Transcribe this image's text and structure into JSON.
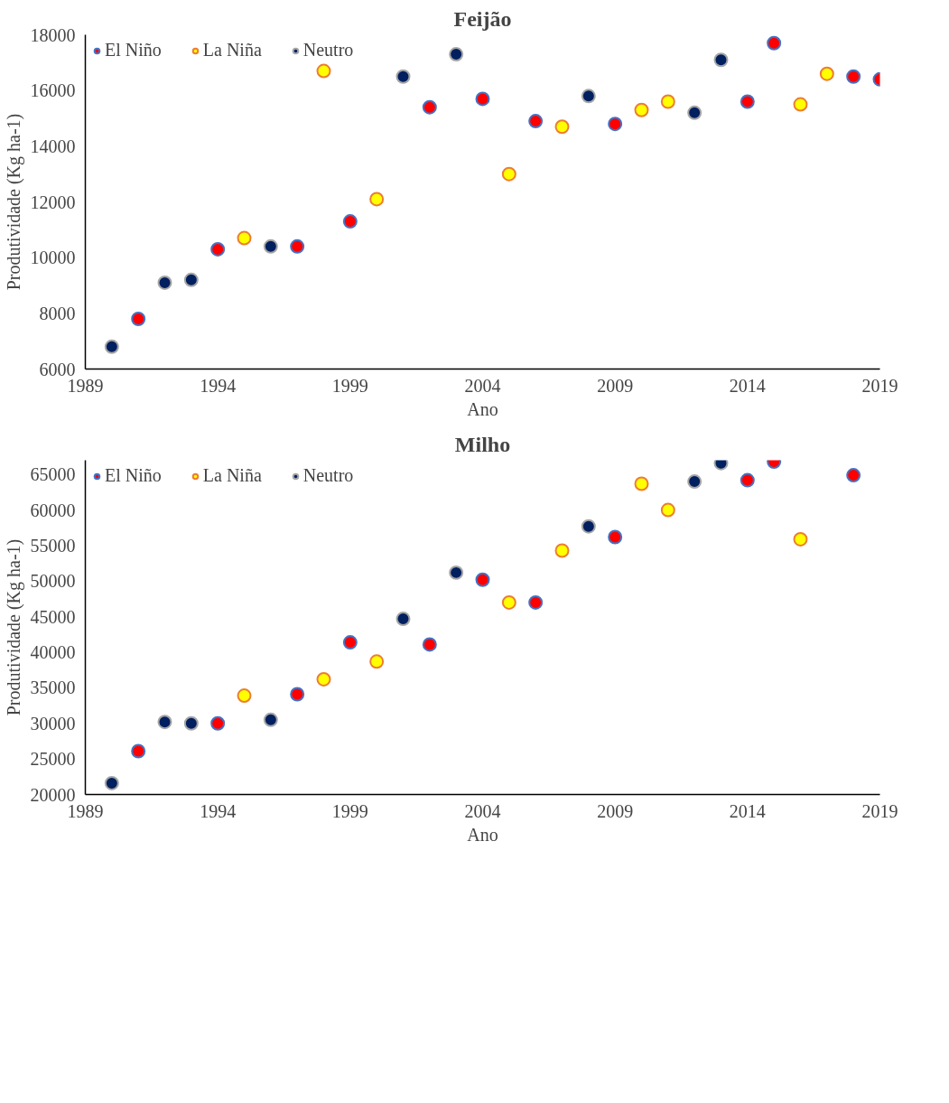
{
  "chart_data": [
    {
      "type": "scatter",
      "title": "Feijão",
      "xlabel": "Ano",
      "ylabel": "Produtividade (Kg ha-1)",
      "xlim": [
        1989,
        2019
      ],
      "xticks": [
        1989,
        1994,
        1999,
        2004,
        2009,
        2014,
        2019
      ],
      "ylim": [
        6000,
        18000
      ],
      "yticks": [
        6000,
        8000,
        10000,
        12000,
        14000,
        16000,
        18000
      ],
      "grid": false,
      "legend": "top left",
      "marker": "circle",
      "series": [
        {
          "name": "El Niño",
          "color": "#ff0000",
          "x": [
            1991,
            1994,
            1997,
            1999,
            2002,
            2004,
            2006,
            2009,
            2014,
            2015,
            2018,
            2019
          ],
          "values": [
            7800,
            10300,
            10400,
            11300,
            15400,
            15700,
            14900,
            14800,
            15600,
            17700,
            16500,
            16400
          ]
        },
        {
          "name": "La Niña",
          "color": "#ffff00",
          "x": [
            1995,
            1998,
            2000,
            2005,
            2007,
            2010,
            2011,
            2016,
            2017
          ],
          "values": [
            10700,
            16700,
            12100,
            13000,
            14700,
            15300,
            15600,
            15500,
            16600
          ]
        },
        {
          "name": "Neutro",
          "color": "#002060",
          "x": [
            1990,
            1992,
            1993,
            1996,
            2001,
            2003,
            2008,
            2012,
            2013
          ],
          "values": [
            6800,
            9100,
            9200,
            10400,
            16500,
            17300,
            15800,
            15200,
            17100
          ]
        }
      ]
    },
    {
      "type": "scatter",
      "title": "Milho",
      "xlabel": "Ano",
      "ylabel": "Produtividade (Kg ha-1)",
      "xlim": [
        1989,
        2019
      ],
      "xticks": [
        1989,
        1994,
        1999,
        2004,
        2009,
        2014,
        2019
      ],
      "ylim": [
        20000,
        67000
      ],
      "yticks": [
        20000,
        25000,
        30000,
        35000,
        40000,
        45000,
        50000,
        55000,
        60000,
        65000
      ],
      "grid": false,
      "legend": "top left",
      "marker": "circle",
      "series": [
        {
          "name": "El Niño",
          "color": "#ff0000",
          "x": [
            1991,
            1994,
            1997,
            1999,
            2002,
            2004,
            2006,
            2009,
            2014,
            2015,
            2018
          ],
          "values": [
            26100,
            30000,
            34100,
            41400,
            41100,
            50200,
            47000,
            56200,
            64200,
            66800,
            64900
          ]
        },
        {
          "name": "La Niña",
          "color": "#ffff00",
          "x": [
            1995,
            1998,
            2000,
            2005,
            2007,
            2010,
            2011,
            2016
          ],
          "values": [
            33900,
            36200,
            38700,
            47000,
            54300,
            63700,
            60000,
            55900
          ]
        },
        {
          "name": "Neutro",
          "color": "#002060",
          "x": [
            1990,
            1992,
            1993,
            1996,
            2001,
            2003,
            2008,
            2012,
            2013
          ],
          "values": [
            21600,
            30200,
            30000,
            30500,
            44700,
            51200,
            57700,
            64000,
            66600
          ]
        }
      ]
    }
  ]
}
